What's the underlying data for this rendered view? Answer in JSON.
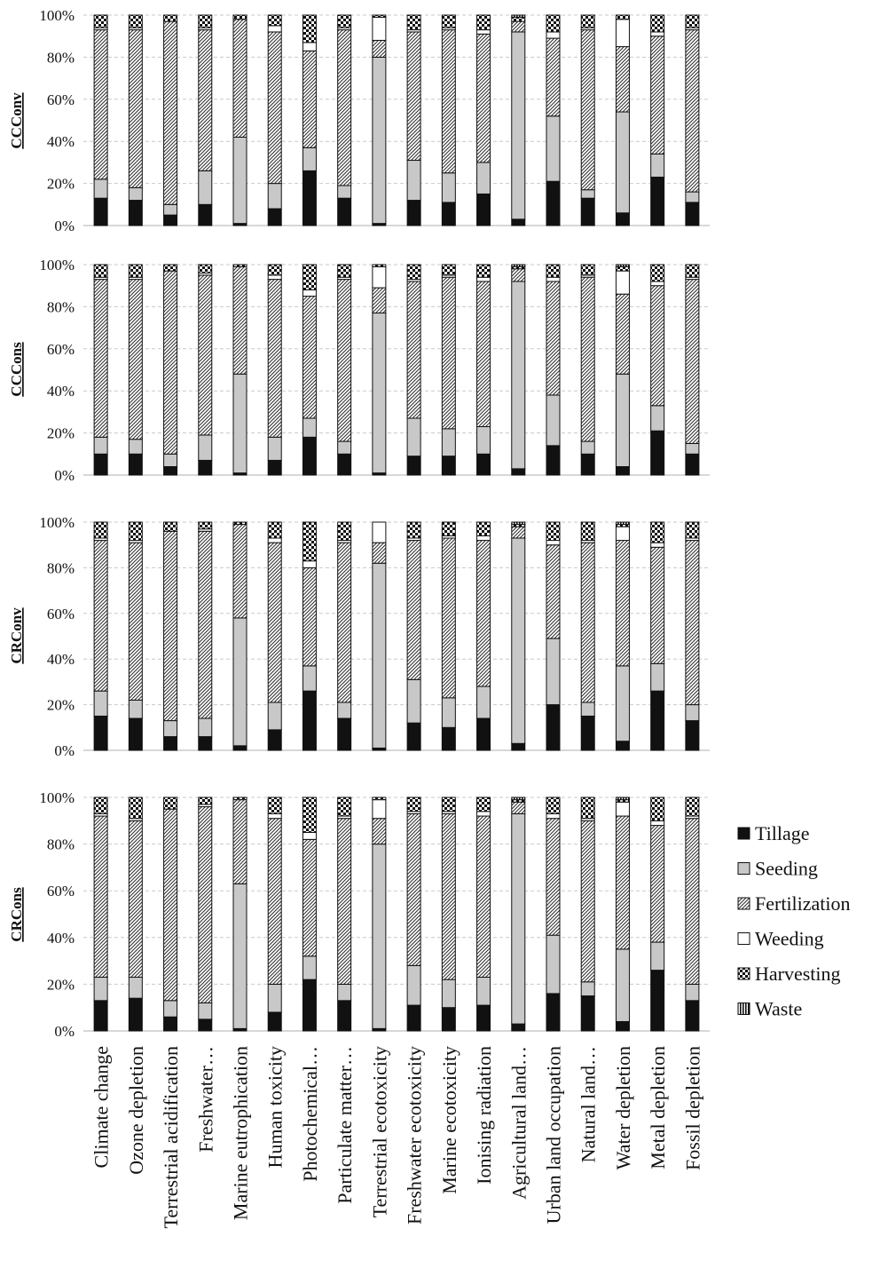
{
  "chart_data": {
    "type": "bar",
    "stacked": "100%",
    "grid": "horizontal-dashed",
    "legend_position": "right",
    "y_ticks": [
      "0%",
      "20%",
      "40%",
      "60%",
      "80%",
      "100%"
    ],
    "ylim": [
      0,
      100
    ],
    "categories": [
      "Climate change",
      "Ozone depletion",
      "Terrestrial acidification",
      "Freshwater…",
      "Marine eutrophication",
      "Human toxicity",
      "Photochemical…",
      "Particulate matter…",
      "Terrestrial ecotoxicity",
      "Freshwater ecotoxicity",
      "Marine ecotoxicity",
      "Ionising radiation",
      "Agricultural land…",
      "Urban land occupation",
      "Natural land…",
      "Water depletion",
      "Metal depletion",
      "Fossil depletion"
    ],
    "legend": [
      {
        "name": "Tillage",
        "pattern": "solid-black"
      },
      {
        "name": "Seeding",
        "pattern": "solid-gray"
      },
      {
        "name": "Fertilization",
        "pattern": "diagonal-hatch"
      },
      {
        "name": "Weeding",
        "pattern": "white"
      },
      {
        "name": "Harvesting",
        "pattern": "checker"
      },
      {
        "name": "Waste",
        "pattern": "vertical-stripes"
      }
    ],
    "panels": [
      {
        "ylabel": "CCConv",
        "series": [
          {
            "name": "Tillage",
            "values": [
              13,
              12,
              5,
              10,
              1,
              8,
              26,
              13,
              1,
              12,
              11,
              15,
              3,
              21,
              13,
              6,
              23,
              11
            ]
          },
          {
            "name": "Seeding",
            "values": [
              9,
              6,
              5,
              16,
              41,
              12,
              11,
              6,
              79,
              19,
              14,
              15,
              89,
              31,
              4,
              48,
              11,
              5
            ]
          },
          {
            "name": "Fertilization",
            "values": [
              71,
              75,
              87,
              67,
              56,
              72,
              46,
              74,
              8,
              61,
              68,
              61,
              5,
              37,
              76,
              31,
              56,
              77
            ]
          },
          {
            "name": "Weeding",
            "values": [
              1,
              1,
              0,
              1,
              0,
              3,
              4,
              1,
              11,
              1,
              1,
              2,
              0,
              3,
              1,
              13,
              2,
              1
            ]
          },
          {
            "name": "Harvesting",
            "values": [
              6,
              6,
              3,
              6,
              2,
              5,
              13,
              6,
              1,
              7,
              6,
              7,
              2,
              8,
              6,
              2,
              8,
              6
            ]
          },
          {
            "name": "Waste",
            "values": [
              0,
              0,
              0,
              0,
              0,
              0,
              0,
              0,
              0,
              0,
              0,
              0,
              1,
              0,
              0,
              0,
              0,
              0
            ]
          }
        ]
      },
      {
        "ylabel": "CCCons",
        "series": [
          {
            "name": "Tillage",
            "values": [
              10,
              10,
              4,
              7,
              1,
              7,
              18,
              10,
              1,
              9,
              9,
              10,
              3,
              14,
              10,
              4,
              21,
              10
            ]
          },
          {
            "name": "Seeding",
            "values": [
              8,
              7,
              6,
              12,
              47,
              11,
              9,
              6,
              76,
              18,
              13,
              13,
              89,
              24,
              6,
              44,
              12,
              5
            ]
          },
          {
            "name": "Fertilization",
            "values": [
              75,
              76,
              87,
              76,
              51,
              75,
              58,
              77,
              12,
              65,
              72,
              69,
              6,
              54,
              78,
              38,
              57,
              78
            ]
          },
          {
            "name": "Weeding",
            "values": [
              1,
              1,
              0,
              1,
              0,
              2,
              3,
              1,
              10,
              1,
              1,
              2,
              0,
              2,
              1,
              11,
              2,
              1
            ]
          },
          {
            "name": "Harvesting",
            "values": [
              6,
              6,
              3,
              4,
              1,
              5,
              12,
              6,
              1,
              7,
              5,
              6,
              1,
              6,
              5,
              2,
              8,
              6
            ]
          },
          {
            "name": "Waste",
            "values": [
              0,
              0,
              0,
              0,
              0,
              0,
              0,
              0,
              0,
              0,
              0,
              0,
              1,
              0,
              0,
              1,
              0,
              0
            ]
          }
        ]
      },
      {
        "ylabel": "CRConv",
        "series": [
          {
            "name": "Tillage",
            "values": [
              15,
              14,
              6,
              6,
              2,
              9,
              26,
              14,
              1,
              12,
              10,
              14,
              3,
              20,
              15,
              4,
              26,
              13
            ]
          },
          {
            "name": "Seeding",
            "values": [
              11,
              8,
              7,
              8,
              56,
              12,
              11,
              7,
              81,
              19,
              13,
              14,
              90,
              29,
              6,
              33,
              12,
              7
            ]
          },
          {
            "name": "Fertilization",
            "values": [
              66,
              69,
              83,
              82,
              41,
              70,
              43,
              70,
              9,
              61,
              70,
              64,
              5,
              41,
              70,
              55,
              51,
              72
            ]
          },
          {
            "name": "Weeding",
            "values": [
              1,
              1,
              0,
              1,
              0,
              2,
              3,
              1,
              9,
              1,
              1,
              2,
              0,
              2,
              1,
              6,
              2,
              1
            ]
          },
          {
            "name": "Harvesting",
            "values": [
              7,
              8,
              4,
              3,
              1,
              7,
              17,
              8,
              0,
              7,
              6,
              6,
              1,
              8,
              8,
              1,
              9,
              7
            ]
          },
          {
            "name": "Waste",
            "values": [
              0,
              0,
              0,
              0,
              0,
              0,
              0,
              0,
              0,
              0,
              0,
              0,
              1,
              0,
              0,
              1,
              0,
              0
            ]
          }
        ]
      },
      {
        "ylabel": "CRCons",
        "series": [
          {
            "name": "Tillage",
            "values": [
              13,
              14,
              6,
              5,
              1,
              8,
              22,
              13,
              1,
              11,
              10,
              11,
              3,
              16,
              15,
              4,
              26,
              13
            ]
          },
          {
            "name": "Seeding",
            "values": [
              10,
              9,
              7,
              7,
              62,
              12,
              10,
              7,
              79,
              17,
              12,
              12,
              90,
              25,
              6,
              31,
              12,
              7
            ]
          },
          {
            "name": "Fertilization",
            "values": [
              69,
              67,
              82,
              84,
              36,
              71,
              50,
              71,
              11,
              65,
              71,
              69,
              5,
              50,
              69,
              57,
              50,
              71
            ]
          },
          {
            "name": "Weeding",
            "values": [
              1,
              1,
              0,
              1,
              0,
              2,
              3,
              1,
              8,
              1,
              1,
              2,
              0,
              2,
              1,
              6,
              2,
              1
            ]
          },
          {
            "name": "Harvesting",
            "values": [
              7,
              9,
              5,
              3,
              1,
              7,
              15,
              8,
              1,
              6,
              6,
              6,
              1,
              7,
              9,
              1,
              10,
              8
            ]
          },
          {
            "name": "Waste",
            "values": [
              0,
              0,
              0,
              0,
              0,
              0,
              0,
              0,
              0,
              0,
              0,
              0,
              1,
              0,
              0,
              1,
              0,
              0
            ]
          }
        ]
      }
    ]
  }
}
